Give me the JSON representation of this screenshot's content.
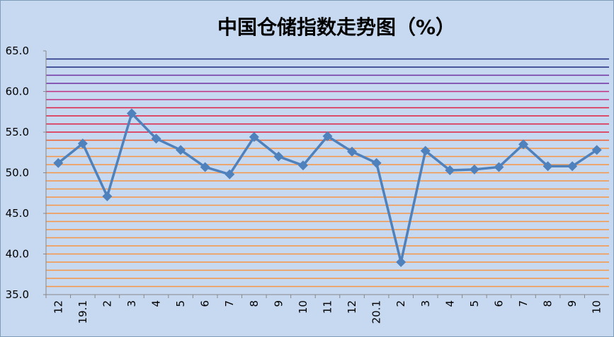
{
  "chart_data": {
    "type": "line",
    "title": "中国仓储指数走势图（%）",
    "categories": [
      "12",
      "19.1",
      "2",
      "3",
      "4",
      "5",
      "6",
      "7",
      "8",
      "9",
      "10",
      "11",
      "12",
      "20.1",
      "2",
      "3",
      "4",
      "5",
      "6",
      "7",
      "8",
      "9",
      "10"
    ],
    "series": [
      {
        "color": "#4f81bd",
        "values": [
          51.2,
          53.6,
          47.1,
          57.3,
          54.2,
          52.8,
          50.7,
          49.8,
          54.4,
          52.0,
          50.9,
          54.5,
          52.6,
          51.2,
          39.0,
          52.7,
          50.3,
          50.4,
          50.7,
          53.5,
          50.8,
          50.8,
          52.8
        ]
      }
    ],
    "ylim": [
      35,
      65
    ],
    "yticks": [
      {
        "value": 35,
        "label": "35.0"
      },
      {
        "value": 40,
        "label": "40.0"
      },
      {
        "value": 45,
        "label": "45.0"
      },
      {
        "value": 50,
        "label": "50.0"
      },
      {
        "value": 55,
        "label": "55.0"
      },
      {
        "value": 60,
        "label": "60.0"
      },
      {
        "value": 65,
        "label": "65.0"
      }
    ],
    "grid": true,
    "grid_lines": [
      36,
      37,
      38,
      39,
      40,
      41,
      42,
      43,
      44,
      45,
      46,
      47,
      48,
      49,
      50,
      51,
      52,
      53,
      54,
      55,
      56,
      57,
      58,
      59,
      60,
      61,
      62,
      63,
      64
    ],
    "grid_colors": [
      "#f79646",
      "#f79646",
      "#f79646",
      "#f79646",
      "#f79646",
      "#f79646",
      "#f79646",
      "#f79646",
      "#f79646",
      "#f79646",
      "#f79646",
      "#f79646",
      "#f79646",
      "#f79646",
      "#f79646",
      "#f79646",
      "#f79646",
      "#f79646",
      "#f0602a",
      "#e02040",
      "#e02040",
      "#e02040",
      "#e02040",
      "#c0307f",
      "#c0307f",
      "#7030a0",
      "#7030a0",
      "#1f2a80",
      "#1f2a80"
    ]
  }
}
